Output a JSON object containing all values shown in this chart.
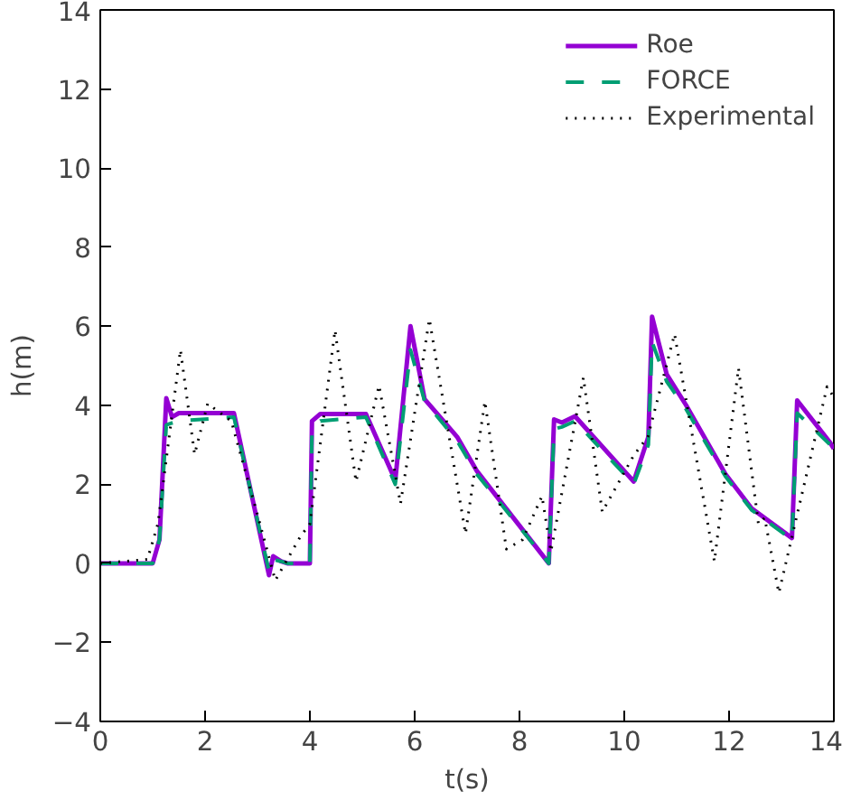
{
  "chart_data": {
    "type": "line",
    "xlabel": "t(s)",
    "ylabel": "h(m)",
    "xlim": [
      0,
      14
    ],
    "ylim": [
      -4,
      14
    ],
    "xticks": [
      0,
      2,
      4,
      6,
      8,
      10,
      12,
      14
    ],
    "yticks": [
      -4,
      -2,
      0,
      2,
      4,
      6,
      8,
      10,
      12,
      14
    ],
    "grid": false,
    "legend": "top right",
    "series": [
      {
        "name": "Roe",
        "color": "#9400d3",
        "line_style": "solid",
        "x": [
          0,
          1.0,
          1.13,
          1.26,
          1.37,
          1.5,
          2.55,
          3.22,
          3.3,
          3.45,
          3.57,
          4.0,
          4.04,
          4.2,
          5.07,
          5.63,
          5.92,
          6.19,
          6.44,
          6.81,
          7.19,
          8.56,
          8.66,
          8.81,
          9.06,
          10.18,
          10.46,
          10.53,
          10.81,
          11.18,
          11.93,
          12.43,
          13.2,
          13.3,
          13.93,
          14
        ],
        "values": [
          0,
          0,
          0.6,
          4.18,
          3.7,
          3.8,
          3.8,
          -0.3,
          0.18,
          0.05,
          0,
          0,
          3.6,
          3.78,
          3.78,
          2.1,
          6.0,
          4.15,
          3.77,
          3.2,
          2.33,
          0,
          3.64,
          3.56,
          3.72,
          2.07,
          3.2,
          6.24,
          4.78,
          4.0,
          2.26,
          1.39,
          0.64,
          4.12,
          3.05,
          2.9
        ]
      },
      {
        "name": "FORCE",
        "color": "#009e73",
        "line_style": "dashed",
        "x": [
          0,
          1.0,
          1.13,
          1.26,
          1.37,
          1.5,
          2.55,
          3.22,
          3.3,
          3.45,
          3.57,
          4.0,
          4.04,
          4.2,
          5.07,
          5.63,
          5.92,
          6.19,
          6.44,
          6.81,
          7.19,
          8.56,
          8.66,
          8.81,
          9.06,
          10.18,
          10.46,
          10.53,
          10.81,
          11.18,
          11.93,
          12.43,
          13.2,
          13.3,
          13.93,
          14
        ],
        "values": [
          0,
          0,
          0.6,
          3.5,
          3.55,
          3.6,
          3.7,
          -0.2,
          0.1,
          0.05,
          0,
          0,
          3.4,
          3.6,
          3.7,
          2.0,
          5.4,
          4.1,
          3.7,
          3.1,
          2.25,
          0,
          3.4,
          3.45,
          3.6,
          2.0,
          3.0,
          5.6,
          4.6,
          3.9,
          2.2,
          1.35,
          0.6,
          3.8,
          3.0,
          2.85
        ]
      },
      {
        "name": "Experimental",
        "color": "#000000",
        "line_style": "dotted",
        "x": [
          0,
          0.9,
          1.1,
          1.53,
          1.8,
          2.05,
          2.5,
          2.95,
          3.34,
          3.82,
          4.0,
          4.48,
          4.88,
          5.32,
          5.73,
          6.28,
          6.97,
          7.34,
          7.75,
          8.06,
          8.43,
          8.6,
          9.22,
          9.58,
          10.18,
          10.45,
          10.96,
          11.72,
          12.18,
          12.56,
          12.68,
          12.95,
          13.87,
          14
        ],
        "values": [
          0,
          0.1,
          1.0,
          5.4,
          2.76,
          4.04,
          3.6,
          1.47,
          -0.43,
          0.68,
          1.0,
          5.9,
          2.07,
          4.5,
          1.51,
          6.18,
          0.75,
          4.1,
          0.36,
          0.6,
          1.7,
          0.3,
          4.7,
          1.3,
          2.73,
          3.2,
          5.8,
          0.05,
          4.94,
          1.0,
          1.15,
          -0.75,
          4.47,
          4.2
        ]
      }
    ]
  }
}
